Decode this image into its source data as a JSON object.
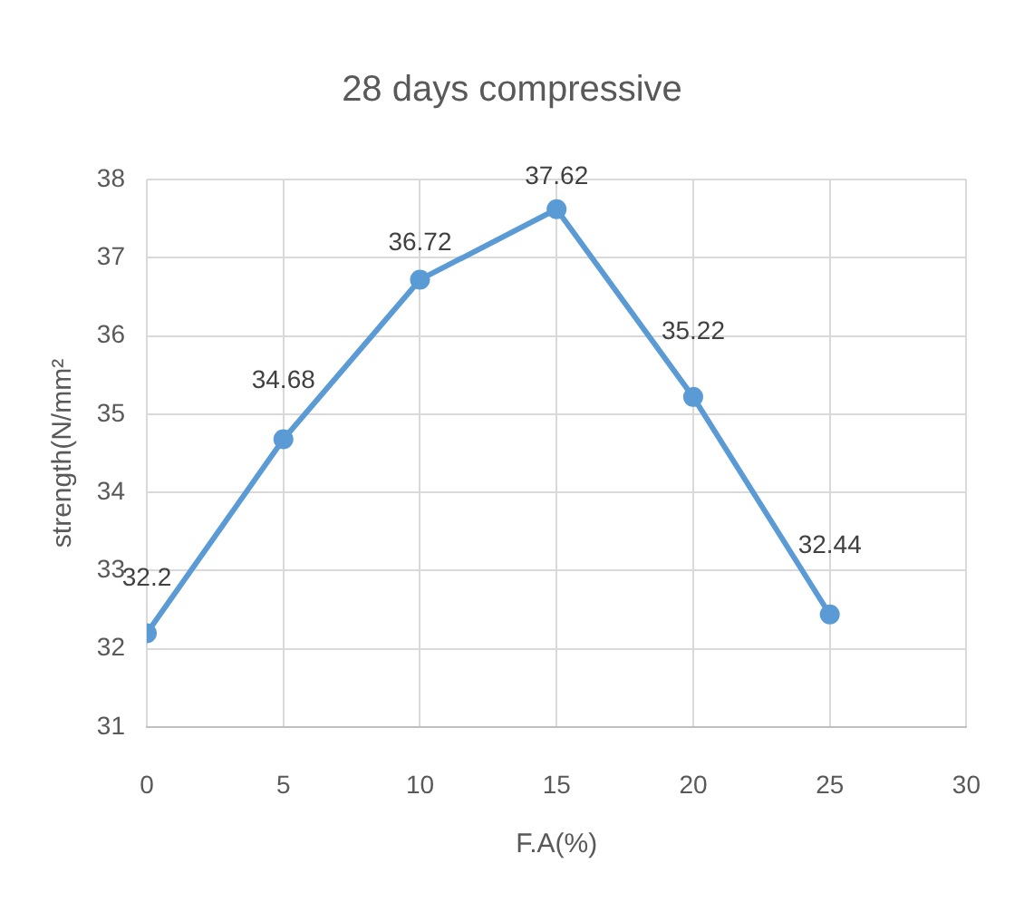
{
  "chart_data": {
    "type": "line",
    "title": "28 days compressive",
    "xlabel": "F.A(%)",
    "ylabel": "strength(N/mm²",
    "x": [
      0,
      5,
      10,
      15,
      20,
      25
    ],
    "series": [
      {
        "color": "#5b9bd5",
        "values": [
          32.2,
          34.68,
          36.72,
          37.62,
          35.22,
          32.44
        ]
      }
    ],
    "xlim": [
      0,
      30
    ],
    "xticks": [
      0,
      5,
      10,
      15,
      20,
      25,
      30
    ],
    "ylim": [
      31,
      38
    ],
    "yticks": [
      31,
      32,
      33,
      34,
      35,
      36,
      37,
      38
    ],
    "grid": true,
    "marker": "circle",
    "line_style": "solid",
    "data_labels": true
  }
}
